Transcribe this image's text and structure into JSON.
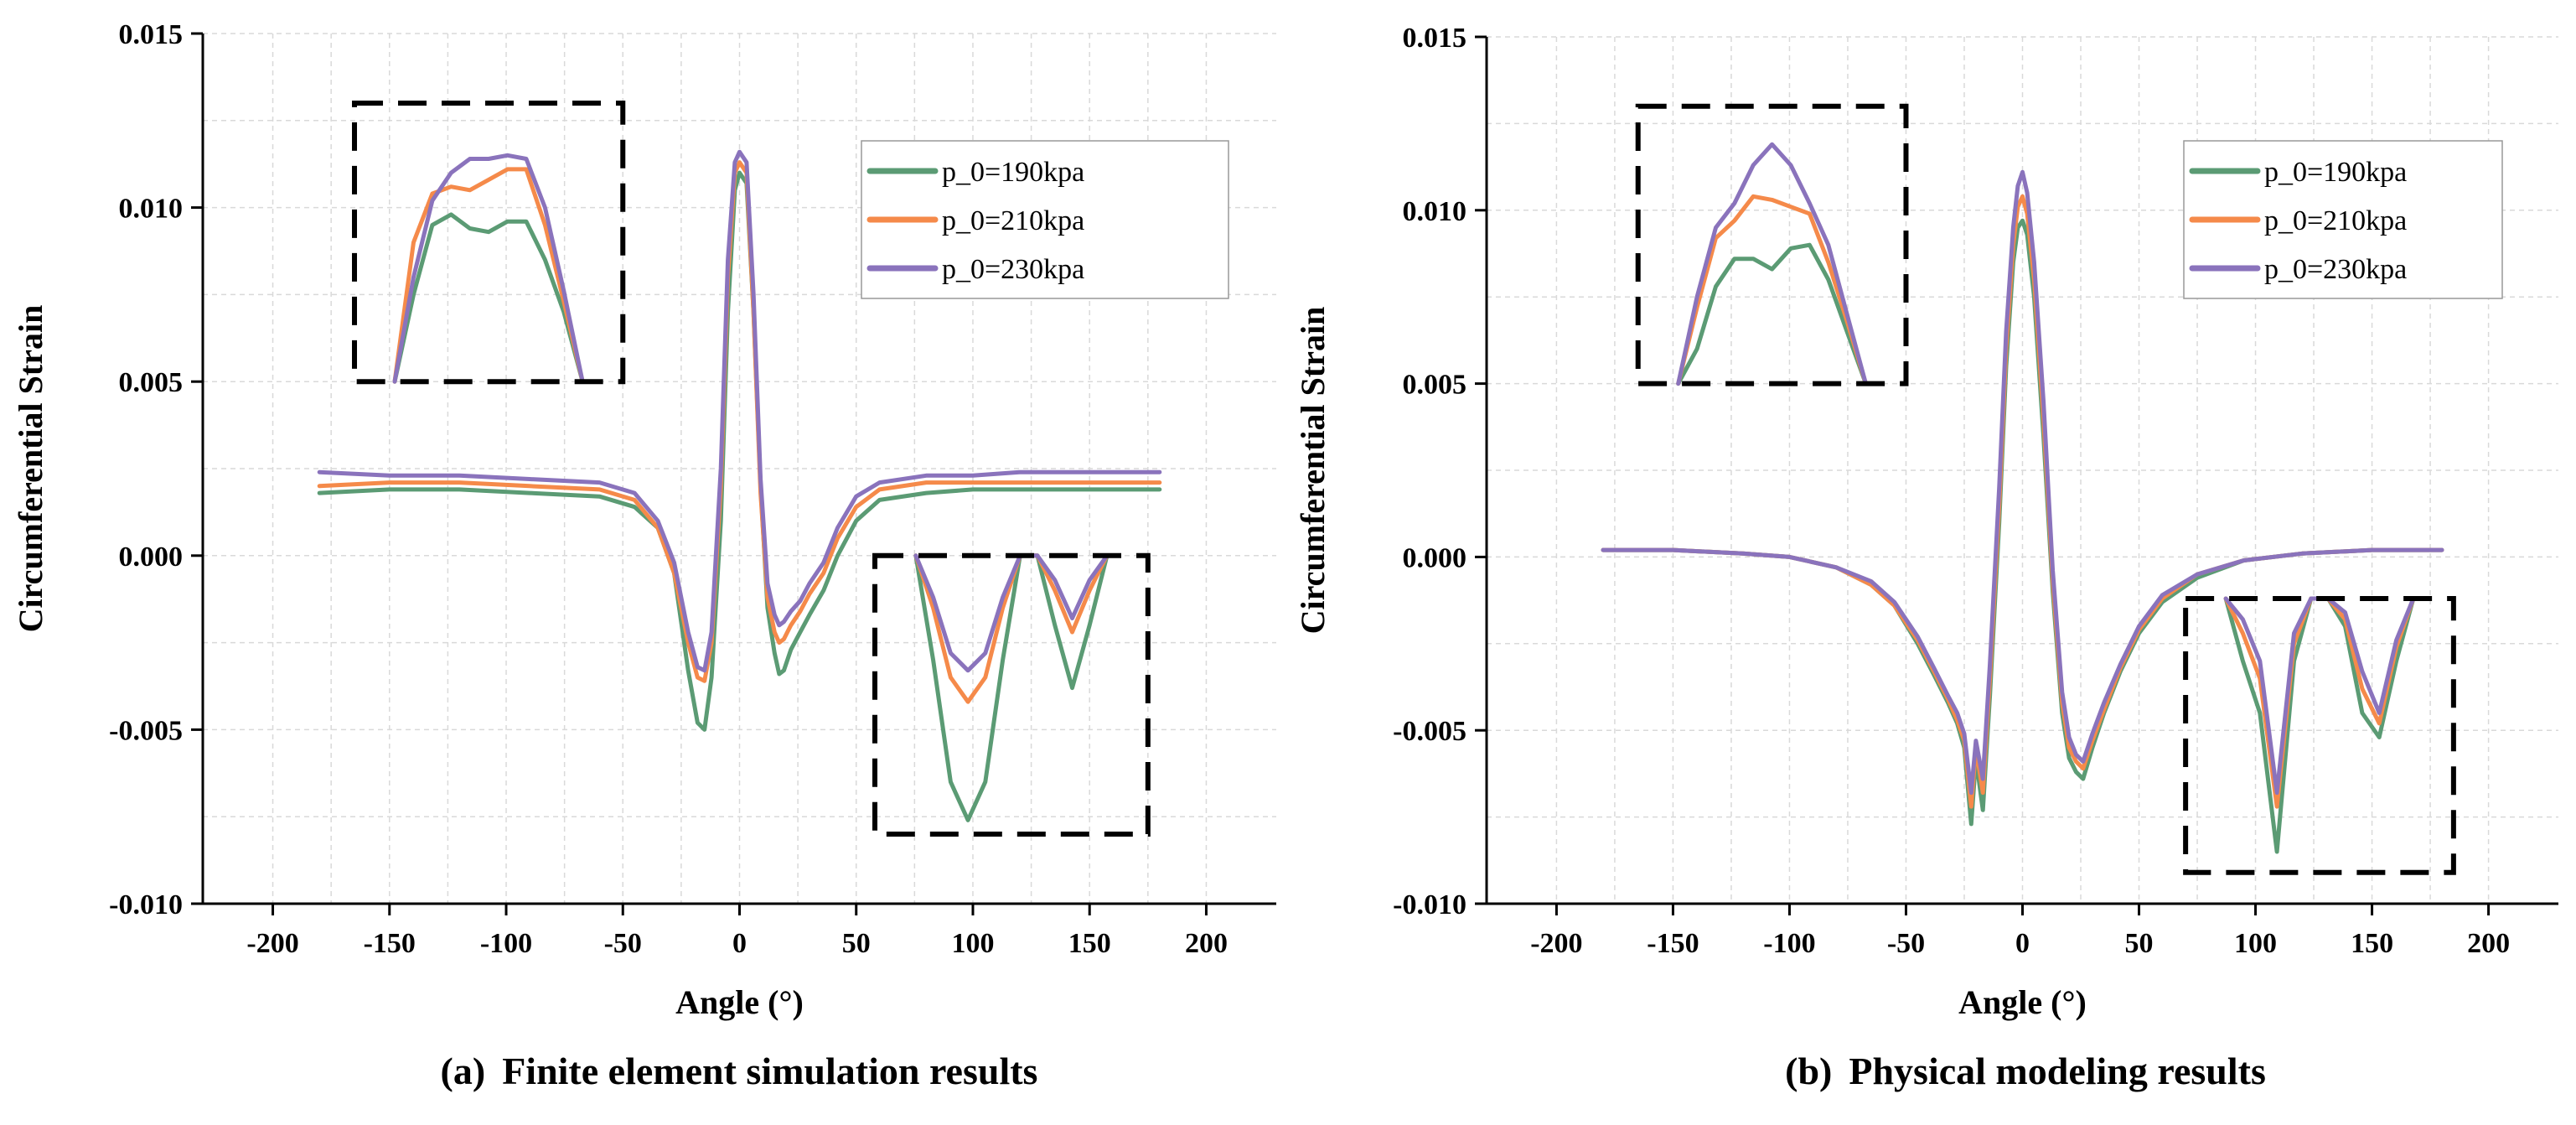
{
  "colors": {
    "s190": "#5b9b74",
    "s210": "#f58a4a",
    "s230": "#8a73bc"
  },
  "chart_data": [
    {
      "type": "line",
      "panel": "a",
      "title": "Finite element simulation results",
      "caption_prefix": "(a)",
      "xlabel": "Angle (°)",
      "ylabel": "Circumferential Strain",
      "xlim": [
        -230,
        230
      ],
      "ylim": [
        -0.01,
        0.015
      ],
      "xticks": [
        -200,
        -150,
        -100,
        -50,
        0,
        50,
        100,
        150,
        200
      ],
      "yticks": [
        -0.01,
        -0.005,
        0.0,
        0.005,
        0.01,
        0.015
      ],
      "ytick_labels": [
        "-0.010",
        "-0.005",
        "0.000",
        "0.005",
        "0.010",
        "0.015"
      ],
      "grid": true,
      "legend_position": "top-right",
      "series": [
        {
          "name": "p_0=190kpa",
          "color": "#5b9b74",
          "x": [
            -180,
            -150,
            -120,
            -90,
            -60,
            -45,
            -35,
            -28,
            -22,
            -18,
            -15,
            -12,
            -8,
            -5,
            -2,
            0,
            3,
            6,
            9,
            12,
            15,
            17,
            19,
            22,
            26,
            30,
            36,
            42,
            50,
            60,
            80,
            100,
            120,
            150,
            180
          ],
          "y": [
            0.0018,
            0.0019,
            0.0019,
            0.0018,
            0.0017,
            0.0014,
            0.0008,
            -0.0005,
            -0.0033,
            -0.0048,
            -0.005,
            -0.0035,
            0.001,
            0.007,
            0.0105,
            0.011,
            0.0107,
            0.007,
            0.002,
            -0.0015,
            -0.0028,
            -0.0034,
            -0.0033,
            -0.0027,
            -0.0022,
            -0.0017,
            -0.001,
            0.0,
            0.001,
            0.0016,
            0.0018,
            0.0019,
            0.0019,
            0.0019,
            0.0019
          ]
        },
        {
          "name": "p_0=210kpa",
          "color": "#f58a4a",
          "x": [
            -180,
            -150,
            -120,
            -90,
            -60,
            -45,
            -35,
            -28,
            -22,
            -18,
            -15,
            -12,
            -8,
            -5,
            -2,
            0,
            3,
            6,
            9,
            12,
            15,
            17,
            19,
            22,
            26,
            30,
            36,
            42,
            50,
            60,
            80,
            100,
            120,
            150,
            180
          ],
          "y": [
            0.002,
            0.0021,
            0.0021,
            0.002,
            0.0019,
            0.0016,
            0.0008,
            -0.0005,
            -0.0025,
            -0.0035,
            -0.0036,
            -0.0025,
            0.002,
            0.008,
            0.011,
            0.0113,
            0.011,
            0.007,
            0.0018,
            -0.0012,
            -0.0022,
            -0.0025,
            -0.0024,
            -0.002,
            -0.0016,
            -0.0011,
            -0.0005,
            0.0005,
            0.0014,
            0.0019,
            0.0021,
            0.0021,
            0.0021,
            0.0021,
            0.0021
          ]
        },
        {
          "name": "p_0=230kpa",
          "color": "#8a73bc",
          "x": [
            -180,
            -150,
            -120,
            -90,
            -60,
            -45,
            -35,
            -28,
            -22,
            -18,
            -15,
            -12,
            -8,
            -5,
            -2,
            0,
            3,
            6,
            9,
            12,
            15,
            17,
            19,
            22,
            26,
            30,
            36,
            42,
            50,
            60,
            80,
            100,
            120,
            150,
            180
          ],
          "y": [
            0.0024,
            0.0023,
            0.0023,
            0.0022,
            0.0021,
            0.0018,
            0.001,
            -0.0002,
            -0.0022,
            -0.0032,
            -0.0033,
            -0.0022,
            0.0025,
            0.0085,
            0.0113,
            0.0116,
            0.0113,
            0.0075,
            0.0022,
            -0.0008,
            -0.0017,
            -0.002,
            -0.0019,
            -0.0016,
            -0.0013,
            -0.0008,
            -0.0002,
            0.0008,
            0.0017,
            0.0021,
            0.0023,
            0.0023,
            0.0024,
            0.0024,
            0.0024
          ]
        }
      ],
      "insets": [
        {
          "box_x": [
            -165,
            -50
          ],
          "box_y": [
            0.005,
            0.013
          ],
          "series": [
            {
              "y": [
                0.005,
                0.0075,
                0.0095,
                0.0098,
                0.0094,
                0.0093,
                0.0096,
                0.0096,
                0.0085,
                0.007,
                0.005
              ]
            },
            {
              "y": [
                0.005,
                0.009,
                0.0104,
                0.0106,
                0.0105,
                0.0108,
                0.0111,
                0.0111,
                0.0095,
                0.0073,
                0.005
              ]
            },
            {
              "y": [
                0.005,
                0.008,
                0.0102,
                0.011,
                0.0114,
                0.0114,
                0.0115,
                0.0114,
                0.01,
                0.0076,
                0.005
              ]
            }
          ]
        },
        {
          "box_x": [
            58,
            175
          ],
          "box_y": [
            -0.008,
            0.0
          ],
          "series": [
            {
              "y": [
                0.0,
                -0.003,
                -0.0065,
                -0.0076,
                -0.0065,
                -0.003,
                0.0,
                0.0,
                -0.002,
                -0.0038,
                -0.002,
                0.0
              ]
            },
            {
              "y": [
                0.0,
                -0.0015,
                -0.0035,
                -0.0042,
                -0.0035,
                -0.0015,
                0.0,
                0.0,
                -0.001,
                -0.0022,
                -0.001,
                0.0
              ]
            },
            {
              "y": [
                0.0,
                -0.0012,
                -0.0028,
                -0.0033,
                -0.0028,
                -0.0012,
                0.0,
                0.0,
                -0.0007,
                -0.0018,
                -0.0007,
                0.0
              ]
            }
          ]
        }
      ]
    },
    {
      "type": "line",
      "panel": "b",
      "title": "Physical modeling results",
      "caption_prefix": "(b)",
      "xlabel": "Angle (°)",
      "ylabel": "Circumferential Strain",
      "xlim": [
        -230,
        230
      ],
      "ylim": [
        -0.01,
        0.015
      ],
      "xticks": [
        -200,
        -150,
        -100,
        -50,
        0,
        50,
        100,
        150,
        200
      ],
      "yticks": [
        -0.01,
        -0.005,
        0.0,
        0.005,
        0.01,
        0.015
      ],
      "ytick_labels": [
        "-0.010",
        "-0.005",
        "0.000",
        "0.005",
        "0.010",
        "0.015"
      ],
      "grid": true,
      "legend_position": "top-right",
      "series": [
        {
          "name": "p_0=190kpa",
          "color": "#5b9b74",
          "x": [
            -180,
            -150,
            -120,
            -100,
            -80,
            -65,
            -55,
            -45,
            -38,
            -32,
            -28,
            -25,
            -22,
            -20,
            -17,
            -14,
            -10,
            -7,
            -4,
            -2,
            0,
            2,
            5,
            9,
            13,
            17,
            20,
            23,
            26,
            30,
            35,
            42,
            50,
            60,
            75,
            95,
            120,
            150,
            180
          ],
          "y": [
            0.0002,
            0.0002,
            0.0001,
            0.0,
            -0.0003,
            -0.0008,
            -0.0014,
            -0.0025,
            -0.0034,
            -0.0042,
            -0.0048,
            -0.0055,
            -0.0077,
            -0.0058,
            -0.0073,
            -0.004,
            0.001,
            0.0055,
            0.0085,
            0.0095,
            0.0097,
            0.0093,
            0.0075,
            0.0035,
            -0.001,
            -0.0045,
            -0.0058,
            -0.0062,
            -0.0064,
            -0.0055,
            -0.0045,
            -0.0033,
            -0.0022,
            -0.0013,
            -0.0006,
            -0.0001,
            0.0001,
            0.0002,
            0.0002
          ]
        },
        {
          "name": "p_0=210kpa",
          "color": "#f58a4a",
          "x": [
            -180,
            -150,
            -120,
            -100,
            -80,
            -65,
            -55,
            -45,
            -38,
            -32,
            -28,
            -25,
            -22,
            -20,
            -17,
            -14,
            -10,
            -7,
            -4,
            -2,
            0,
            2,
            5,
            9,
            13,
            17,
            20,
            23,
            26,
            30,
            35,
            42,
            50,
            60,
            75,
            95,
            120,
            150,
            180
          ],
          "y": [
            0.0002,
            0.0002,
            0.0001,
            0.0,
            -0.0003,
            -0.0008,
            -0.0014,
            -0.0024,
            -0.0033,
            -0.0041,
            -0.0047,
            -0.0053,
            -0.0072,
            -0.0055,
            -0.0068,
            -0.0035,
            0.0015,
            0.006,
            0.009,
            0.0101,
            0.0104,
            0.0099,
            0.008,
            0.004,
            -0.0007,
            -0.0042,
            -0.0055,
            -0.0059,
            -0.0061,
            -0.0053,
            -0.0044,
            -0.0032,
            -0.0021,
            -0.0012,
            -0.0005,
            -0.0001,
            0.0001,
            0.0002,
            0.0002
          ]
        },
        {
          "name": "p_0=230kpa",
          "color": "#8a73bc",
          "x": [
            -180,
            -150,
            -120,
            -100,
            -80,
            -65,
            -55,
            -45,
            -38,
            -32,
            -28,
            -25,
            -22,
            -20,
            -17,
            -14,
            -10,
            -7,
            -4,
            -2,
            0,
            2,
            5,
            9,
            13,
            17,
            20,
            23,
            26,
            30,
            35,
            42,
            50,
            60,
            75,
            95,
            120,
            150,
            180
          ],
          "y": [
            0.0002,
            0.0002,
            0.0001,
            0.0,
            -0.0003,
            -0.0007,
            -0.0013,
            -0.0023,
            -0.0032,
            -0.004,
            -0.0045,
            -0.0051,
            -0.0068,
            -0.0053,
            -0.0064,
            -0.0031,
            0.002,
            0.0065,
            0.0095,
            0.0107,
            0.0111,
            0.0105,
            0.0085,
            0.0045,
            -0.0004,
            -0.0039,
            -0.0052,
            -0.0057,
            -0.0059,
            -0.0051,
            -0.0042,
            -0.0031,
            -0.002,
            -0.0011,
            -0.0005,
            -0.0001,
            0.0001,
            0.0002,
            0.0002
          ]
        }
      ],
      "insets": [
        {
          "box_x": [
            -165,
            -50
          ],
          "box_y": [
            0.005,
            0.013
          ],
          "series": [
            {
              "y": [
                0.005,
                0.006,
                0.0078,
                0.0086,
                0.0086,
                0.0083,
                0.0089,
                0.009,
                0.008,
                0.0065,
                0.005
              ]
            },
            {
              "y": [
                0.005,
                0.0072,
                0.0092,
                0.0097,
                0.0104,
                0.0103,
                0.0101,
                0.0099,
                0.0085,
                0.0068,
                0.005
              ]
            },
            {
              "y": [
                0.005,
                0.0075,
                0.0095,
                0.0102,
                0.0113,
                0.0119,
                0.0113,
                0.0102,
                0.009,
                0.007,
                0.005
              ]
            }
          ]
        },
        {
          "box_x": [
            70,
            185
          ],
          "box_y": [
            -0.0091,
            -0.0012
          ],
          "series": [
            {
              "y": [
                -0.0012,
                -0.003,
                -0.0045,
                -0.0085,
                -0.003,
                -0.0012,
                -0.0012,
                -0.002,
                -0.0045,
                -0.0052,
                -0.003,
                -0.0012
              ]
            },
            {
              "y": [
                -0.0012,
                -0.0022,
                -0.0035,
                -0.0072,
                -0.0025,
                -0.0012,
                -0.0012,
                -0.0018,
                -0.0038,
                -0.0048,
                -0.0026,
                -0.0012
              ]
            },
            {
              "y": [
                -0.0012,
                -0.0018,
                -0.003,
                -0.0068,
                -0.0022,
                -0.0012,
                -0.0012,
                -0.0016,
                -0.0033,
                -0.0045,
                -0.0024,
                -0.0012
              ]
            }
          ]
        }
      ]
    }
  ]
}
